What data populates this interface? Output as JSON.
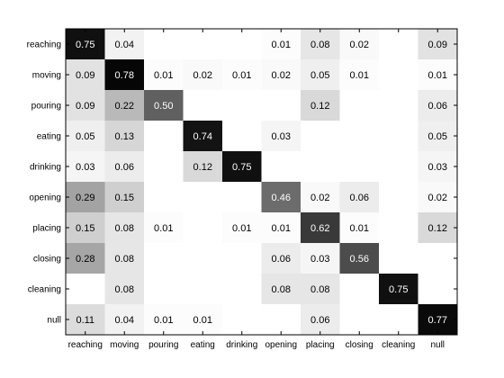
{
  "chart_data": {
    "type": "heatmap",
    "title": "",
    "xlabel": "",
    "ylabel": "",
    "colorscale": "gray_reversed",
    "value_range": [
      0,
      0.8
    ],
    "grid": false,
    "rows": [
      "reaching",
      "moving",
      "pouring",
      "eating",
      "drinking",
      "opening",
      "placing",
      "closing",
      "cleaning",
      "null"
    ],
    "cols": [
      "reaching",
      "moving",
      "pouring",
      "eating",
      "drinking",
      "opening",
      "placing",
      "closing",
      "cleaning",
      "null"
    ],
    "values": [
      [
        0.75,
        0.04,
        null,
        null,
        null,
        0.01,
        0.08,
        0.02,
        null,
        0.09
      ],
      [
        0.09,
        0.78,
        0.01,
        0.02,
        0.01,
        0.02,
        0.05,
        0.01,
        null,
        0.01
      ],
      [
        0.09,
        0.22,
        0.5,
        null,
        null,
        null,
        0.12,
        null,
        null,
        0.06
      ],
      [
        0.05,
        0.13,
        null,
        0.74,
        null,
        0.03,
        null,
        null,
        null,
        0.05
      ],
      [
        0.03,
        0.06,
        null,
        0.12,
        0.75,
        null,
        null,
        null,
        null,
        0.03
      ],
      [
        0.29,
        0.15,
        null,
        null,
        null,
        0.46,
        0.02,
        0.06,
        null,
        0.02
      ],
      [
        0.15,
        0.08,
        0.01,
        null,
        0.01,
        0.01,
        0.62,
        0.01,
        null,
        0.12
      ],
      [
        0.28,
        0.08,
        null,
        null,
        null,
        0.06,
        0.03,
        0.56,
        null,
        null
      ],
      [
        null,
        0.08,
        null,
        null,
        null,
        0.08,
        0.08,
        null,
        0.75,
        null
      ],
      [
        0.11,
        0.04,
        0.01,
        0.01,
        null,
        null,
        0.06,
        null,
        null,
        0.77
      ]
    ],
    "value_labels": [
      [
        "0.75",
        "0.04",
        "",
        "",
        "",
        "0.01",
        "0.08",
        "0.02",
        "",
        "0.09"
      ],
      [
        "0.09",
        "0.78",
        "0.01",
        "0.02",
        "0.01",
        "0.02",
        "0.05",
        "0.01",
        "",
        "0.01"
      ],
      [
        "0.09",
        "0.22",
        "0.50",
        "",
        "",
        "",
        "0.12",
        "",
        "",
        "0.06"
      ],
      [
        "0.05",
        "0.13",
        "",
        "0.74",
        "",
        "0.03",
        "",
        "",
        "",
        "0.05"
      ],
      [
        "0.03",
        "0.06",
        "",
        "0.12",
        "0.75",
        "",
        "",
        "",
        "",
        "0.03"
      ],
      [
        "0.29",
        "0.15",
        "",
        "",
        "",
        "0.46",
        "0.02",
        "0.06",
        "",
        "0.02"
      ],
      [
        "0.15",
        "0.08",
        "0.01",
        "",
        "0.01",
        "0.01",
        "0.62",
        "0.01",
        "",
        "0.12"
      ],
      [
        "0.28",
        "0.08",
        "",
        "",
        "",
        "0.06",
        "0.03",
        "0.56",
        "",
        ""
      ],
      [
        "",
        "0.08",
        "",
        "",
        "",
        "0.08",
        "0.08",
        "",
        "0.75",
        ""
      ],
      [
        "0.11",
        "0.04",
        "0.01",
        "0.01",
        "",
        "",
        "0.06",
        "",
        "",
        "0.77"
      ]
    ]
  }
}
